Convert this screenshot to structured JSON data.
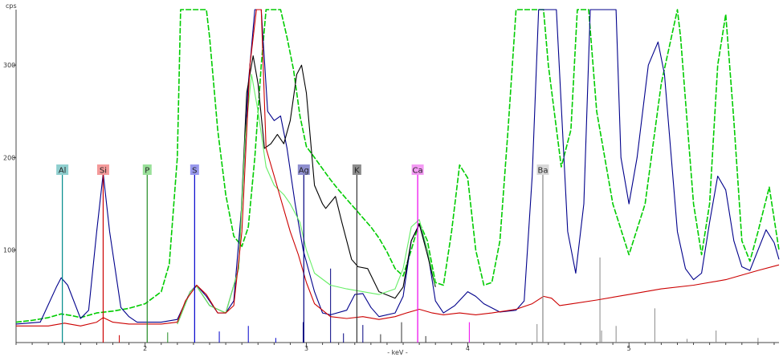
{
  "chart_data": {
    "type": "line",
    "ylabel": "cps",
    "xlabel": "- keV -",
    "xlim": [
      1.2,
      5.93
    ],
    "ylim": [
      0,
      360
    ],
    "xticks": [
      2,
      3,
      4,
      5
    ],
    "yticks": [
      100,
      200,
      300
    ],
    "grid": false,
    "legend": "none",
    "series": [
      {
        "color": "#00cc00",
        "dashed": true,
        "points": [
          [
            1.2,
            22
          ],
          [
            1.3,
            24
          ],
          [
            1.4,
            27
          ],
          [
            1.48,
            31
          ],
          [
            1.55,
            29
          ],
          [
            1.6,
            27
          ],
          [
            1.7,
            32
          ],
          [
            1.8,
            34
          ],
          [
            1.9,
            37
          ],
          [
            2.0,
            42
          ],
          [
            2.1,
            55
          ],
          [
            2.15,
            85
          ],
          [
            2.2,
            200
          ],
          [
            2.22,
            370
          ],
          [
            2.38,
            370
          ],
          [
            2.4,
            330
          ],
          [
            2.45,
            230
          ],
          [
            2.5,
            160
          ],
          [
            2.55,
            115
          ],
          [
            2.6,
            104
          ],
          [
            2.64,
            125
          ],
          [
            2.68,
            200
          ],
          [
            2.72,
            300
          ],
          [
            2.75,
            370
          ],
          [
            2.84,
            370
          ],
          [
            2.88,
            330
          ],
          [
            2.92,
            295
          ],
          [
            2.96,
            245
          ],
          [
            3.0,
            212
          ],
          [
            3.05,
            200
          ],
          [
            3.1,
            188
          ],
          [
            3.15,
            176
          ],
          [
            3.2,
            165
          ],
          [
            3.25,
            155
          ],
          [
            3.3,
            145
          ],
          [
            3.35,
            135
          ],
          [
            3.4,
            125
          ],
          [
            3.45,
            113
          ],
          [
            3.5,
            98
          ],
          [
            3.55,
            80
          ],
          [
            3.6,
            72
          ],
          [
            3.65,
            100
          ],
          [
            3.7,
            130
          ],
          [
            3.75,
            110
          ],
          [
            3.8,
            65
          ],
          [
            3.85,
            62
          ],
          [
            3.9,
            120
          ],
          [
            3.95,
            192
          ],
          [
            4.0,
            178
          ],
          [
            4.05,
            100
          ],
          [
            4.1,
            62
          ],
          [
            4.15,
            65
          ],
          [
            4.2,
            110
          ],
          [
            4.25,
            230
          ],
          [
            4.3,
            370
          ],
          [
            4.47,
            370
          ],
          [
            4.5,
            300
          ],
          [
            4.58,
            190
          ],
          [
            4.64,
            230
          ],
          [
            4.68,
            370
          ],
          [
            4.75,
            370
          ],
          [
            4.8,
            250
          ],
          [
            4.9,
            150
          ],
          [
            5.0,
            95
          ],
          [
            5.1,
            150
          ],
          [
            5.2,
            280
          ],
          [
            5.3,
            360
          ],
          [
            5.32,
            330
          ],
          [
            5.36,
            240
          ],
          [
            5.4,
            150
          ],
          [
            5.45,
            95
          ],
          [
            5.5,
            150
          ],
          [
            5.55,
            300
          ],
          [
            5.6,
            355
          ],
          [
            5.65,
            240
          ],
          [
            5.7,
            110
          ],
          [
            5.75,
            88
          ],
          [
            5.8,
            120
          ],
          [
            5.87,
            168
          ],
          [
            5.93,
            100
          ]
        ]
      },
      {
        "color": "#00008b",
        "points": [
          [
            1.2,
            20
          ],
          [
            1.35,
            22
          ],
          [
            1.45,
            60
          ],
          [
            1.48,
            70
          ],
          [
            1.52,
            62
          ],
          [
            1.6,
            26
          ],
          [
            1.65,
            35
          ],
          [
            1.7,
            120
          ],
          [
            1.74,
            183
          ],
          [
            1.78,
            120
          ],
          [
            1.85,
            38
          ],
          [
            1.9,
            28
          ],
          [
            1.95,
            22
          ],
          [
            2.1,
            22
          ],
          [
            2.2,
            25
          ],
          [
            2.28,
            55
          ],
          [
            2.32,
            62
          ],
          [
            2.38,
            50
          ],
          [
            2.45,
            32
          ],
          [
            2.5,
            32
          ],
          [
            2.55,
            45
          ],
          [
            2.6,
            150
          ],
          [
            2.64,
            280
          ],
          [
            2.68,
            370
          ],
          [
            2.72,
            370
          ],
          [
            2.76,
            250
          ],
          [
            2.8,
            240
          ],
          [
            2.84,
            245
          ],
          [
            2.88,
            210
          ],
          [
            2.93,
            150
          ],
          [
            2.98,
            100
          ],
          [
            3.05,
            55
          ],
          [
            3.1,
            32
          ],
          [
            3.15,
            30
          ],
          [
            3.25,
            35
          ],
          [
            3.3,
            52
          ],
          [
            3.35,
            53
          ],
          [
            3.4,
            38
          ],
          [
            3.45,
            28
          ],
          [
            3.55,
            32
          ],
          [
            3.6,
            50
          ],
          [
            3.65,
            110
          ],
          [
            3.7,
            128
          ],
          [
            3.75,
            100
          ],
          [
            3.8,
            45
          ],
          [
            3.85,
            32
          ],
          [
            3.92,
            40
          ],
          [
            4.0,
            55
          ],
          [
            4.05,
            50
          ],
          [
            4.1,
            42
          ],
          [
            4.2,
            33
          ],
          [
            4.3,
            35
          ],
          [
            4.35,
            45
          ],
          [
            4.4,
            180
          ],
          [
            4.44,
            370
          ],
          [
            4.55,
            370
          ],
          [
            4.62,
            120
          ],
          [
            4.67,
            75
          ],
          [
            4.72,
            150
          ],
          [
            4.76,
            370
          ],
          [
            4.92,
            370
          ],
          [
            4.95,
            200
          ],
          [
            5.0,
            150
          ],
          [
            5.05,
            200
          ],
          [
            5.12,
            300
          ],
          [
            5.18,
            325
          ],
          [
            5.22,
            290
          ],
          [
            5.3,
            120
          ],
          [
            5.35,
            80
          ],
          [
            5.4,
            68
          ],
          [
            5.45,
            75
          ],
          [
            5.5,
            130
          ],
          [
            5.55,
            180
          ],
          [
            5.6,
            165
          ],
          [
            5.65,
            110
          ],
          [
            5.7,
            82
          ],
          [
            5.75,
            78
          ],
          [
            5.8,
            100
          ],
          [
            5.85,
            122
          ],
          [
            5.9,
            108
          ],
          [
            5.93,
            90
          ]
        ]
      },
      {
        "color": "#000000",
        "points": [
          [
            2.2,
            20
          ],
          [
            2.28,
            55
          ],
          [
            2.32,
            61
          ],
          [
            2.4,
            40
          ],
          [
            2.5,
            32
          ],
          [
            2.58,
            80
          ],
          [
            2.63,
            270
          ],
          [
            2.67,
            310
          ],
          [
            2.7,
            280
          ],
          [
            2.74,
            210
          ],
          [
            2.78,
            215
          ],
          [
            2.82,
            225
          ],
          [
            2.86,
            215
          ],
          [
            2.9,
            240
          ],
          [
            2.94,
            290
          ],
          [
            2.97,
            300
          ],
          [
            3.0,
            270
          ],
          [
            3.05,
            170
          ],
          [
            3.1,
            150
          ],
          [
            3.12,
            145
          ],
          [
            3.18,
            158
          ],
          [
            3.22,
            130
          ],
          [
            3.28,
            90
          ],
          [
            3.32,
            82
          ],
          [
            3.38,
            80
          ],
          [
            3.45,
            55
          ],
          [
            3.55,
            48
          ],
          [
            3.6,
            60
          ],
          [
            3.65,
            110
          ],
          [
            3.7,
            128
          ],
          [
            3.75,
            95
          ],
          [
            3.8,
            60
          ]
        ]
      },
      {
        "color": "#66ee66",
        "points": [
          [
            2.2,
            20
          ],
          [
            2.28,
            55
          ],
          [
            2.32,
            61
          ],
          [
            2.4,
            40
          ],
          [
            2.5,
            32
          ],
          [
            2.58,
            80
          ],
          [
            2.62,
            220
          ],
          [
            2.66,
            290
          ],
          [
            2.7,
            250
          ],
          [
            2.75,
            190
          ],
          [
            2.8,
            170
          ],
          [
            2.86,
            160
          ],
          [
            2.9,
            150
          ],
          [
            2.96,
            130
          ],
          [
            3.0,
            100
          ],
          [
            3.05,
            75
          ],
          [
            3.15,
            62
          ],
          [
            3.25,
            58
          ],
          [
            3.35,
            55
          ],
          [
            3.45,
            52
          ],
          [
            3.55,
            58
          ],
          [
            3.6,
            80
          ],
          [
            3.65,
            125
          ],
          [
            3.7,
            133
          ],
          [
            3.75,
            100
          ],
          [
            3.8,
            62
          ]
        ]
      },
      {
        "color": "#cc0000",
        "points": [
          [
            1.2,
            18
          ],
          [
            1.4,
            18
          ],
          [
            1.5,
            21
          ],
          [
            1.6,
            18
          ],
          [
            1.7,
            22
          ],
          [
            1.74,
            27
          ],
          [
            1.8,
            22
          ],
          [
            1.9,
            20
          ],
          [
            2.1,
            20
          ],
          [
            2.2,
            22
          ],
          [
            2.25,
            45
          ],
          [
            2.32,
            62
          ],
          [
            2.38,
            52
          ],
          [
            2.45,
            32
          ],
          [
            2.5,
            32
          ],
          [
            2.55,
            40
          ],
          [
            2.6,
            120
          ],
          [
            2.65,
            300
          ],
          [
            2.69,
            370
          ],
          [
            2.72,
            370
          ],
          [
            2.75,
            210
          ],
          [
            2.8,
            180
          ],
          [
            2.85,
            150
          ],
          [
            2.9,
            120
          ],
          [
            2.95,
            95
          ],
          [
            3.0,
            65
          ],
          [
            3.05,
            42
          ],
          [
            3.15,
            28
          ],
          [
            3.25,
            26
          ],
          [
            3.35,
            28
          ],
          [
            3.45,
            25
          ],
          [
            3.55,
            28
          ],
          [
            3.62,
            32
          ],
          [
            3.7,
            36
          ],
          [
            3.78,
            32
          ],
          [
            3.85,
            30
          ],
          [
            3.95,
            32
          ],
          [
            4.05,
            30
          ],
          [
            4.15,
            32
          ],
          [
            4.3,
            36
          ],
          [
            4.4,
            42
          ],
          [
            4.47,
            50
          ],
          [
            4.52,
            48
          ],
          [
            4.57,
            40
          ],
          [
            4.65,
            42
          ],
          [
            4.8,
            46
          ],
          [
            5.0,
            52
          ],
          [
            5.2,
            58
          ],
          [
            5.4,
            62
          ],
          [
            5.6,
            68
          ],
          [
            5.8,
            78
          ],
          [
            5.93,
            84
          ]
        ]
      }
    ],
    "markers": [
      {
        "label": "Al",
        "energy": 1.487,
        "color": "#008b8b",
        "fill": "#8fcfcf"
      },
      {
        "label": "Si",
        "energy": 1.74,
        "color": "#cc0000",
        "fill": "#f49a9a"
      },
      {
        "label": "P",
        "energy": 2.013,
        "color": "#228b22",
        "fill": "#99e099"
      },
      {
        "label": "S",
        "energy": 2.307,
        "color": "#0000cc",
        "fill": "#9999ee"
      },
      {
        "label": "Ag",
        "energy": 2.984,
        "color": "#000080",
        "fill": "#8f8fcf"
      },
      {
        "label": "K",
        "energy": 3.313,
        "color": "#333333",
        "fill": "#8c8c8c"
      },
      {
        "label": "Ca",
        "energy": 3.69,
        "color": "#ee00ee",
        "fill": "#f49af4"
      },
      {
        "label": "Ba",
        "energy": 4.466,
        "color": "#888888",
        "fill": "#d8d8d8"
      }
    ],
    "reference_lines": [
      {
        "energy": 1.84,
        "height": 8,
        "color": "#cc0000"
      },
      {
        "energy": 2.14,
        "height": 11,
        "color": "#228b22"
      },
      {
        "energy": 2.46,
        "height": 12,
        "color": "#0000cc"
      },
      {
        "energy": 2.64,
        "height": 18,
        "color": "#0000cc"
      },
      {
        "energy": 2.81,
        "height": 5,
        "color": "#0000cc"
      },
      {
        "energy": 2.98,
        "height": 22,
        "color": "#000080"
      },
      {
        "energy": 3.15,
        "height": 80,
        "color": "#000080"
      },
      {
        "energy": 3.23,
        "height": 10,
        "color": "#000080"
      },
      {
        "energy": 3.35,
        "height": 19,
        "color": "#000080"
      },
      {
        "energy": 3.46,
        "height": 9,
        "color": "#333333"
      },
      {
        "energy": 3.59,
        "height": 22,
        "color": "#333333"
      },
      {
        "energy": 3.74,
        "height": 7,
        "color": "#333333"
      },
      {
        "energy": 4.01,
        "height": 22,
        "color": "#ee00ee"
      },
      {
        "energy": 4.43,
        "height": 20,
        "color": "#888888"
      },
      {
        "energy": 4.82,
        "height": 92,
        "color": "#888888"
      },
      {
        "energy": 4.83,
        "height": 13,
        "color": "#888888"
      },
      {
        "energy": 4.92,
        "height": 18,
        "color": "#888888"
      },
      {
        "energy": 5.16,
        "height": 37,
        "color": "#888888"
      },
      {
        "energy": 5.36,
        "height": 4,
        "color": "#888888"
      },
      {
        "energy": 5.54,
        "height": 13,
        "color": "#888888"
      },
      {
        "energy": 5.8,
        "height": 5,
        "color": "#888888"
      }
    ]
  }
}
